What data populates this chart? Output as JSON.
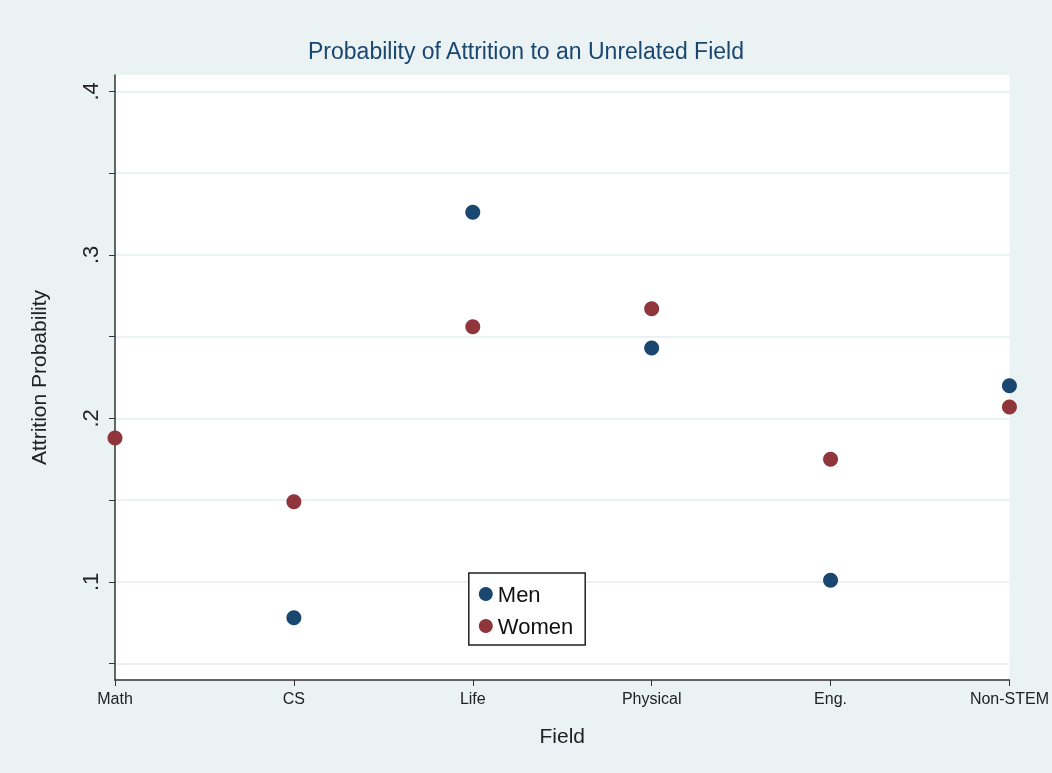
{
  "chart_data": {
    "type": "scatter",
    "title": "Probability of Attrition to an Unrelated Field",
    "xlabel": "Field",
    "ylabel": "Attrition Probability",
    "categories": [
      "Math",
      "CS",
      "Life",
      "Physical",
      "Eng.",
      "Non-STEM"
    ],
    "series": [
      {
        "name": "Men",
        "color": "#1a476f",
        "values": [
          null,
          0.078,
          0.326,
          0.243,
          0.101,
          0.22
        ]
      },
      {
        "name": "Women",
        "color": "#90353b",
        "values": [
          0.188,
          0.149,
          0.256,
          0.267,
          0.175,
          0.207
        ]
      }
    ],
    "ylim": [
      0.04,
      0.41
    ],
    "yticks": [
      {
        "value": 0.05,
        "label": null
      },
      {
        "value": 0.1,
        "label": ".1"
      },
      {
        "value": 0.15,
        "label": null
      },
      {
        "value": 0.2,
        "label": ".2"
      },
      {
        "value": 0.25,
        "label": null
      },
      {
        "value": 0.3,
        "label": ".3"
      },
      {
        "value": 0.35,
        "label": null
      },
      {
        "value": 0.4,
        "label": ".4"
      }
    ],
    "grid": "y",
    "legend": "bottom",
    "marker": "circle"
  }
}
